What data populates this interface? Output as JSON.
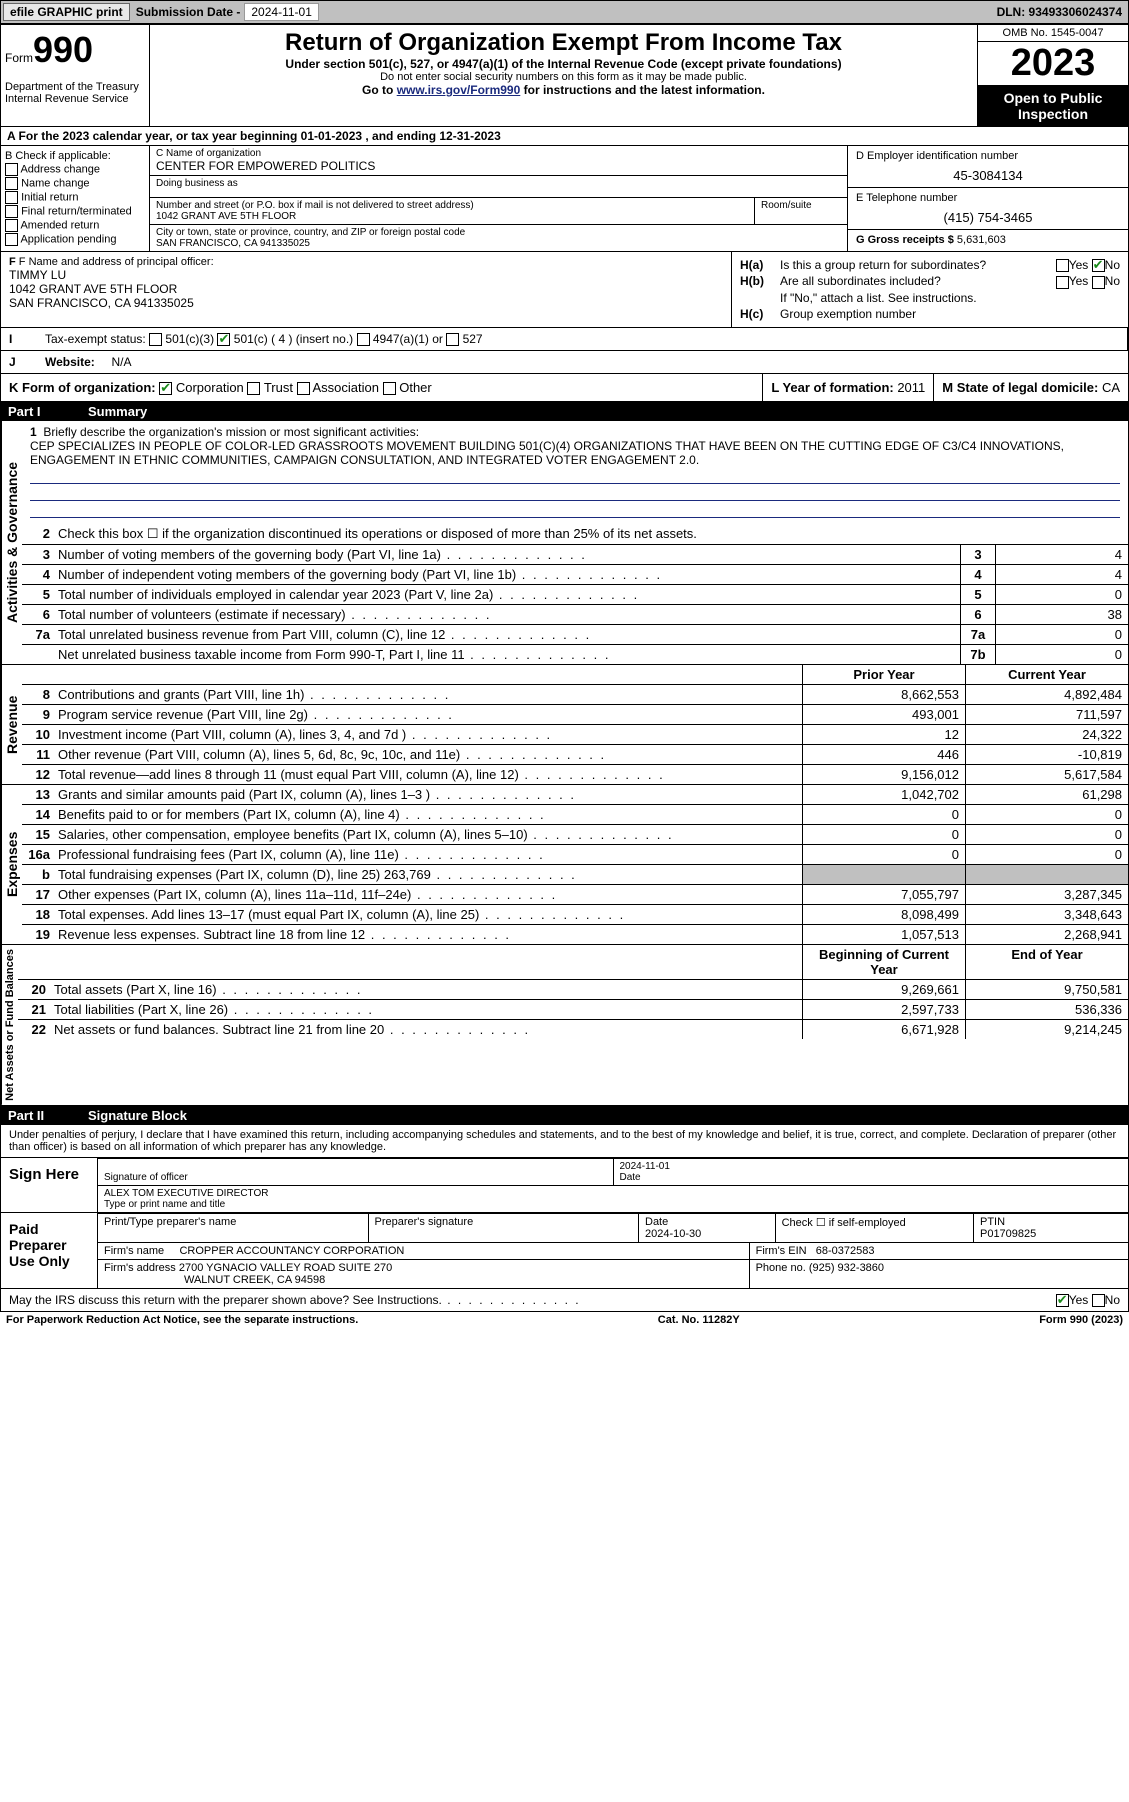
{
  "topbar": {
    "efile": "efile GRAPHIC print",
    "subdate_label": "Submission Date - ",
    "subdate": "2024-11-01",
    "dln": "DLN: 93493306024374"
  },
  "header": {
    "form_label": "Form",
    "form_num": "990",
    "title": "Return of Organization Exempt From Income Tax",
    "subtitle": "Under section 501(c), 527, or 4947(a)(1) of the Internal Revenue Code (except private foundations)",
    "sub2": "Do not enter social security numbers on this form as it may be made public.",
    "goto_pre": "Go to ",
    "goto_link": "www.irs.gov/Form990",
    "goto_post": " for instructions and the latest information.",
    "dept1": "Department of the Treasury",
    "dept2": "Internal Revenue Service",
    "omb": "OMB No. 1545-0047",
    "year": "2023",
    "open": "Open to Public Inspection"
  },
  "rowA": "A For the 2023 calendar year, or tax year beginning 01-01-2023    , and ending 12-31-2023",
  "colB": {
    "label": "B Check if applicable:",
    "opts": [
      "Address change",
      "Name change",
      "Initial return",
      "Final return/terminated",
      "Amended return",
      "Application pending"
    ]
  },
  "colC": {
    "name_label": "C Name of organization",
    "name": "CENTER FOR EMPOWERED POLITICS",
    "dba_label": "Doing business as",
    "dba": "",
    "addr_label": "Number and street (or P.O. box if mail is not delivered to street address)",
    "room_label": "Room/suite",
    "addr": "1042 GRANT AVE 5TH FLOOR",
    "city_label": "City or town, state or province, country, and ZIP or foreign postal code",
    "city": "SAN FRANCISCO, CA  941335025"
  },
  "colD": {
    "ein_label": "D Employer identification number",
    "ein": "45-3084134",
    "tel_label": "E Telephone number",
    "tel": "(415) 754-3465",
    "gross_label": "G Gross receipts $ ",
    "gross": "5,631,603"
  },
  "colF": {
    "label": "F Name and address of principal officer:",
    "name": "TIMMY LU",
    "addr1": "1042 GRANT AVE 5TH FLOOR",
    "addr2": "SAN FRANCISCO, CA  941335025"
  },
  "colH": {
    "ha": "Is this a group return for subordinates?",
    "hb": "Are all subordinates included?",
    "hb_note": "If \"No,\" attach a list. See instructions.",
    "hc": "Group exemption number"
  },
  "rowI": {
    "label": "Tax-exempt status:",
    "o1": "501(c)(3)",
    "o2": "501(c) ( 4 ) (insert no.)",
    "o3": "4947(a)(1) or",
    "o4": "527"
  },
  "rowJ": {
    "label": "Website:",
    "val": "N/A"
  },
  "rowK": {
    "label": "K Form of organization:",
    "opts": [
      "Corporation",
      "Trust",
      "Association",
      "Other"
    ],
    "l_label": "L Year of formation: ",
    "l_val": "2011",
    "m_label": "M State of legal domicile: ",
    "m_val": "CA"
  },
  "part1": {
    "num": "Part I",
    "title": "Summary"
  },
  "mission": {
    "label": "Briefly describe the organization's mission or most significant activities:",
    "text": "CEP SPECIALIZES IN PEOPLE OF COLOR-LED GRASSROOTS MOVEMENT BUILDING 501(C)(4) ORGANIZATIONS THAT HAVE BEEN ON THE CUTTING EDGE OF C3/C4 INNOVATIONS, ENGAGEMENT IN ETHNIC COMMUNITIES, CAMPAIGN CONSULTATION, AND INTEGRATED VOTER ENGAGEMENT 2.0."
  },
  "gov": {
    "side": "Activities & Governance",
    "r2": "Check this box  ☐  if the organization discontinued its operations or disposed of more than 25% of its net assets.",
    "rows": [
      {
        "n": "3",
        "t": "Number of voting members of the governing body (Part VI, line 1a)",
        "box": "3",
        "v": "4"
      },
      {
        "n": "4",
        "t": "Number of independent voting members of the governing body (Part VI, line 1b)",
        "box": "4",
        "v": "4"
      },
      {
        "n": "5",
        "t": "Total number of individuals employed in calendar year 2023 (Part V, line 2a)",
        "box": "5",
        "v": "0"
      },
      {
        "n": "6",
        "t": "Total number of volunteers (estimate if necessary)",
        "box": "6",
        "v": "38"
      },
      {
        "n": "7a",
        "t": "Total unrelated business revenue from Part VIII, column (C), line 12",
        "box": "7a",
        "v": "0"
      },
      {
        "n": "",
        "t": "Net unrelated business taxable income from Form 990-T, Part I, line 11",
        "box": "7b",
        "v": "0"
      }
    ]
  },
  "rev": {
    "side": "Revenue",
    "hdr_prior": "Prior Year",
    "hdr_curr": "Current Year",
    "rows": [
      {
        "n": "8",
        "t": "Contributions and grants (Part VIII, line 1h)",
        "p": "8,662,553",
        "c": "4,892,484"
      },
      {
        "n": "9",
        "t": "Program service revenue (Part VIII, line 2g)",
        "p": "493,001",
        "c": "711,597"
      },
      {
        "n": "10",
        "t": "Investment income (Part VIII, column (A), lines 3, 4, and 7d )",
        "p": "12",
        "c": "24,322"
      },
      {
        "n": "11",
        "t": "Other revenue (Part VIII, column (A), lines 5, 6d, 8c, 9c, 10c, and 11e)",
        "p": "446",
        "c": "-10,819"
      },
      {
        "n": "12",
        "t": "Total revenue—add lines 8 through 11 (must equal Part VIII, column (A), line 12)",
        "p": "9,156,012",
        "c": "5,617,584"
      }
    ]
  },
  "exp": {
    "side": "Expenses",
    "rows": [
      {
        "n": "13",
        "t": "Grants and similar amounts paid (Part IX, column (A), lines 1–3 )",
        "p": "1,042,702",
        "c": "61,298"
      },
      {
        "n": "14",
        "t": "Benefits paid to or for members (Part IX, column (A), line 4)",
        "p": "0",
        "c": "0"
      },
      {
        "n": "15",
        "t": "Salaries, other compensation, employee benefits (Part IX, column (A), lines 5–10)",
        "p": "0",
        "c": "0"
      },
      {
        "n": "16a",
        "t": "Professional fundraising fees (Part IX, column (A), line 11e)",
        "p": "0",
        "c": "0"
      },
      {
        "n": "b",
        "t": "Total fundraising expenses (Part IX, column (D), line 25) 263,769",
        "p": "",
        "c": "",
        "shaded": true
      },
      {
        "n": "17",
        "t": "Other expenses (Part IX, column (A), lines 11a–11d, 11f–24e)",
        "p": "7,055,797",
        "c": "3,287,345"
      },
      {
        "n": "18",
        "t": "Total expenses. Add lines 13–17 (must equal Part IX, column (A), line 25)",
        "p": "8,098,499",
        "c": "3,348,643"
      },
      {
        "n": "19",
        "t": "Revenue less expenses. Subtract line 18 from line 12",
        "p": "1,057,513",
        "c": "2,268,941"
      }
    ]
  },
  "net": {
    "side": "Net Assets or Fund Balances",
    "hdr_beg": "Beginning of Current Year",
    "hdr_end": "End of Year",
    "rows": [
      {
        "n": "20",
        "t": "Total assets (Part X, line 16)",
        "p": "9,269,661",
        "c": "9,750,581"
      },
      {
        "n": "21",
        "t": "Total liabilities (Part X, line 26)",
        "p": "2,597,733",
        "c": "536,336"
      },
      {
        "n": "22",
        "t": "Net assets or fund balances. Subtract line 21 from line 20",
        "p": "6,671,928",
        "c": "9,214,245"
      }
    ]
  },
  "part2": {
    "num": "Part II",
    "title": "Signature Block"
  },
  "sариable": "Under penalties of perjury, I declare that I have examined this return, including accompanying schedules and statements, and to the best of my knowledge and belief, it is true, correct, and complete. Declaration of preparer (other than officer) is based on all information of which preparer has any knowledge.",
  "sign": {
    "here": "Sign Here",
    "sig_of": "Signature of officer",
    "date_lbl": "Date",
    "date": "2024-11-01",
    "name": "ALEX TOM  EXECUTIVE DIRECTOR",
    "type_lbl": "Type or print name and title"
  },
  "prep": {
    "title": "Paid Preparer Use Only",
    "c1": "Print/Type preparer's name",
    "c2": "Preparer's signature",
    "c3_lbl": "Date",
    "c3": "2024-10-30",
    "c4": "Check ☐ if self-employed",
    "c5_lbl": "PTIN",
    "c5": "P01709825",
    "firm_lbl": "Firm's name",
    "firm": "CROPPER ACCOUNTANCY CORPORATION",
    "ein_lbl": "Firm's EIN",
    "ein": "68-0372583",
    "addr_lbl": "Firm's address",
    "addr1": "2700 YGNACIO VALLEY ROAD SUITE 270",
    "addr2": "WALNUT CREEK, CA  94598",
    "phone_lbl": "Phone no.",
    "phone": "(925) 932-3860"
  },
  "discuss": "May the IRS discuss this return with the preparer shown above? See Instructions.",
  "footer": {
    "l": "For Paperwork Reduction Act Notice, see the separate instructions.",
    "c": "Cat. No. 11282Y",
    "r": "Form 990 (2023)"
  }
}
